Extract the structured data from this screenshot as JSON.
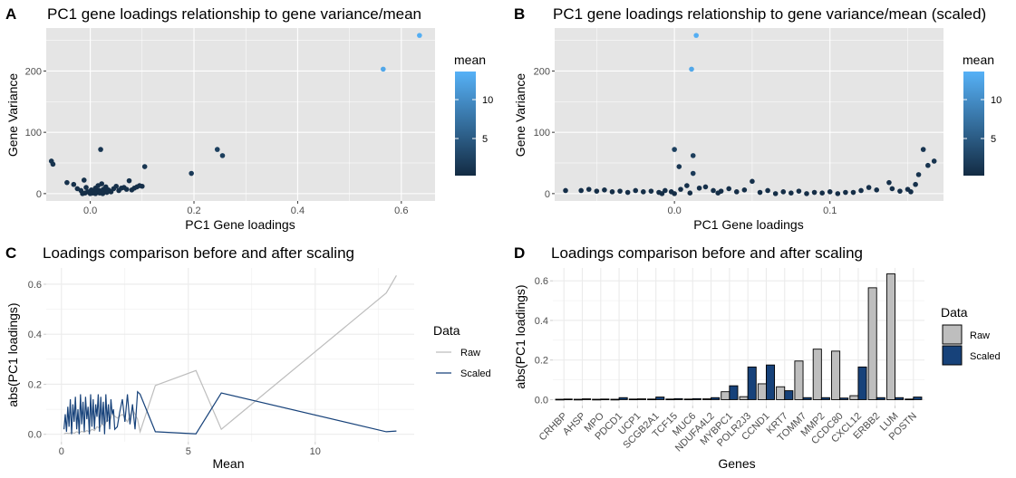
{
  "panels": [
    {
      "letter": "A",
      "title": "PC1 gene loadings relationship to gene variance/mean",
      "xlabel": "PC1 Gene loadings",
      "ylabel": "Gene Variance",
      "xticks": [
        "0.0",
        "0.2",
        "0.4",
        "0.6"
      ],
      "yticks": [
        "0",
        "100",
        "200"
      ],
      "legend_title": "mean",
      "legend_ticks": [
        "5",
        "10"
      ]
    },
    {
      "letter": "B",
      "title": "PC1 gene loadings relationship to gene variance/mean (scaled)",
      "xlabel": "PC1 Gene loadings",
      "ylabel": "Gene Variance",
      "xticks": [
        "0.0",
        "0.1"
      ],
      "yticks": [
        "0",
        "100",
        "200"
      ],
      "legend_title": "mean",
      "legend_ticks": [
        "5",
        "10"
      ]
    },
    {
      "letter": "C",
      "title": "Loadings comparison before and after scaling",
      "xlabel": "Mean",
      "ylabel": "abs(PC1 loadings)",
      "xticks": [
        "0",
        "5",
        "10"
      ],
      "yticks": [
        "0.0",
        "0.2",
        "0.4",
        "0.6"
      ],
      "legend_title": "Data",
      "legend_items": [
        "Raw",
        "Scaled"
      ]
    },
    {
      "letter": "D",
      "title": "Loadings comparison before and after scaling",
      "xlabel": "Genes",
      "ylabel": "abs(PC1 loadings)",
      "yticks": [
        "0.0",
        "0.2",
        "0.4",
        "0.6"
      ],
      "legend_title": "Data",
      "legend_items": [
        "Raw",
        "Scaled"
      ]
    }
  ],
  "colors": {
    "panel_bg": "#e5e5e5",
    "grid": "#ffffff",
    "point_low": "#132b43",
    "point_high": "#56b1f7",
    "raw_line": "#bdbdbd",
    "scaled_line": "#17427a",
    "raw_bar": "#bebebe",
    "scaled_bar": "#17427a"
  },
  "chart_data": [
    {
      "type": "scatter",
      "title": "PC1 gene loadings relationship to gene variance/mean",
      "xlabel": "PC1 Gene loadings",
      "ylabel": "Gene Variance",
      "color_by": "mean",
      "xlim": [
        -0.085,
        0.665
      ],
      "ylim": [
        -12,
        270
      ],
      "points": [
        {
          "x": 0.635,
          "y": 258,
          "mean": 13.2
        },
        {
          "x": 0.565,
          "y": 203,
          "mean": 12.5
        },
        {
          "x": 0.245,
          "y": 72,
          "mean": 2.5
        },
        {
          "x": 0.255,
          "y": 62,
          "mean": 2.3
        },
        {
          "x": 0.195,
          "y": 33,
          "mean": 2.0
        },
        {
          "x": 0.105,
          "y": 44,
          "mean": 1.6
        },
        {
          "x": 0.02,
          "y": 72,
          "mean": 1.5
        },
        {
          "x": -0.075,
          "y": 53,
          "mean": 1.4
        },
        {
          "x": -0.072,
          "y": 48,
          "mean": 1.4
        },
        {
          "x": -0.045,
          "y": 18,
          "mean": 1.2
        },
        {
          "x": -0.032,
          "y": 15,
          "mean": 1.1
        },
        {
          "x": -0.025,
          "y": 8,
          "mean": 1.0
        },
        {
          "x": -0.018,
          "y": 5,
          "mean": 1.0
        },
        {
          "x": -0.012,
          "y": 22,
          "mean": 1.1
        },
        {
          "x": -0.008,
          "y": 10,
          "mean": 1.0
        },
        {
          "x": -0.005,
          "y": 3,
          "mean": 0.9
        },
        {
          "x": 0.0,
          "y": 2,
          "mean": 0.8
        },
        {
          "x": 0.002,
          "y": 6,
          "mean": 0.9
        },
        {
          "x": 0.005,
          "y": 1,
          "mean": 0.8
        },
        {
          "x": 0.008,
          "y": 4,
          "mean": 0.8
        },
        {
          "x": 0.01,
          "y": 9,
          "mean": 0.9
        },
        {
          "x": 0.012,
          "y": 2,
          "mean": 0.8
        },
        {
          "x": 0.015,
          "y": 13,
          "mean": 1.0
        },
        {
          "x": 0.017,
          "y": 5,
          "mean": 0.8
        },
        {
          "x": 0.02,
          "y": 3,
          "mean": 0.8
        },
        {
          "x": 0.022,
          "y": 16,
          "mean": 1.0
        },
        {
          "x": 0.025,
          "y": 7,
          "mean": 0.9
        },
        {
          "x": 0.028,
          "y": 4,
          "mean": 0.8
        },
        {
          "x": 0.03,
          "y": 11,
          "mean": 0.9
        },
        {
          "x": 0.035,
          "y": 6,
          "mean": 0.9
        },
        {
          "x": 0.04,
          "y": 3,
          "mean": 0.8
        },
        {
          "x": 0.045,
          "y": 8,
          "mean": 0.9
        },
        {
          "x": 0.05,
          "y": 12,
          "mean": 1.0
        },
        {
          "x": 0.055,
          "y": 5,
          "mean": 0.9
        },
        {
          "x": 0.06,
          "y": 9,
          "mean": 0.9
        },
        {
          "x": 0.065,
          "y": 10,
          "mean": 1.0
        },
        {
          "x": 0.07,
          "y": 7,
          "mean": 0.9
        },
        {
          "x": 0.075,
          "y": 21,
          "mean": 1.1
        },
        {
          "x": 0.08,
          "y": 6,
          "mean": 0.9
        },
        {
          "x": 0.085,
          "y": 9,
          "mean": 0.9
        },
        {
          "x": 0.09,
          "y": 11,
          "mean": 1.0
        },
        {
          "x": 0.095,
          "y": 13,
          "mean": 1.0
        },
        {
          "x": 0.1,
          "y": 12,
          "mean": 1.0
        },
        {
          "x": -0.015,
          "y": 0,
          "mean": 0.8
        },
        {
          "x": -0.01,
          "y": 1,
          "mean": 0.8
        },
        {
          "x": 0.0,
          "y": 0,
          "mean": 0.8
        },
        {
          "x": 0.01,
          "y": 0,
          "mean": 0.8
        },
        {
          "x": 0.018,
          "y": 1,
          "mean": 0.8
        },
        {
          "x": 0.024,
          "y": 0,
          "mean": 0.8
        },
        {
          "x": 0.032,
          "y": 2,
          "mean": 0.8
        }
      ]
    },
    {
      "type": "scatter",
      "title": "PC1 gene loadings relationship to gene variance/mean (scaled)",
      "xlabel": "PC1 Gene loadings",
      "ylabel": "Gene Variance",
      "color_by": "mean",
      "xlim": [
        -0.077,
        0.173
      ],
      "ylim": [
        -12,
        270
      ],
      "points": [
        {
          "x": 0.014,
          "y": 258,
          "mean": 13.2
        },
        {
          "x": 0.011,
          "y": 203,
          "mean": 12.5
        },
        {
          "x": 0.0,
          "y": 72,
          "mean": 2.5
        },
        {
          "x": 0.012,
          "y": 62,
          "mean": 2.3
        },
        {
          "x": 0.003,
          "y": 44,
          "mean": 1.6
        },
        {
          "x": 0.012,
          "y": 33,
          "mean": 2.0
        },
        {
          "x": 0.16,
          "y": 72,
          "mean": 1.5
        },
        {
          "x": 0.167,
          "y": 53,
          "mean": 1.4
        },
        {
          "x": 0.163,
          "y": 46,
          "mean": 1.4
        },
        {
          "x": 0.157,
          "y": 31,
          "mean": 1.3
        },
        {
          "x": 0.05,
          "y": 20,
          "mean": 1.1
        },
        {
          "x": 0.138,
          "y": 18,
          "mean": 1.1
        },
        {
          "x": 0.155,
          "y": 15,
          "mean": 1.1
        },
        {
          "x": 0.125,
          "y": 10,
          "mean": 1.0
        },
        {
          "x": 0.14,
          "y": 8,
          "mean": 1.0
        },
        {
          "x": 0.15,
          "y": 7,
          "mean": 0.9
        },
        {
          "x": 0.145,
          "y": 4,
          "mean": 0.9
        },
        {
          "x": 0.152,
          "y": 3,
          "mean": 0.9
        },
        {
          "x": 0.12,
          "y": 5,
          "mean": 0.9
        },
        {
          "x": 0.13,
          "y": 6,
          "mean": 0.9
        },
        {
          "x": 0.11,
          "y": 2,
          "mean": 0.8
        },
        {
          "x": 0.1,
          "y": 3,
          "mean": 0.8
        },
        {
          "x": 0.09,
          "y": 2,
          "mean": 0.8
        },
        {
          "x": 0.08,
          "y": 4,
          "mean": 0.8
        },
        {
          "x": 0.07,
          "y": 3,
          "mean": 0.8
        },
        {
          "x": 0.06,
          "y": 5,
          "mean": 0.9
        },
        {
          "x": 0.055,
          "y": 2,
          "mean": 0.8
        },
        {
          "x": 0.045,
          "y": 6,
          "mean": 0.9
        },
        {
          "x": 0.04,
          "y": 3,
          "mean": 0.8
        },
        {
          "x": 0.035,
          "y": 8,
          "mean": 0.9
        },
        {
          "x": 0.03,
          "y": 4,
          "mean": 0.8
        },
        {
          "x": 0.025,
          "y": 5,
          "mean": 0.9
        },
        {
          "x": 0.02,
          "y": 11,
          "mean": 1.0
        },
        {
          "x": 0.016,
          "y": 9,
          "mean": 0.9
        },
        {
          "x": 0.008,
          "y": 13,
          "mean": 1.0
        },
        {
          "x": 0.004,
          "y": 7,
          "mean": 0.9
        },
        {
          "x": -0.002,
          "y": 3,
          "mean": 0.8
        },
        {
          "x": -0.006,
          "y": 5,
          "mean": 0.9
        },
        {
          "x": -0.01,
          "y": 2,
          "mean": 0.8
        },
        {
          "x": -0.015,
          "y": 4,
          "mean": 0.8
        },
        {
          "x": -0.02,
          "y": 3,
          "mean": 0.8
        },
        {
          "x": -0.025,
          "y": 5,
          "mean": 0.9
        },
        {
          "x": -0.03,
          "y": 2,
          "mean": 0.8
        },
        {
          "x": -0.035,
          "y": 4,
          "mean": 0.8
        },
        {
          "x": -0.04,
          "y": 3,
          "mean": 0.8
        },
        {
          "x": -0.045,
          "y": 6,
          "mean": 0.9
        },
        {
          "x": -0.05,
          "y": 4,
          "mean": 0.8
        },
        {
          "x": -0.055,
          "y": 7,
          "mean": 0.9
        },
        {
          "x": -0.06,
          "y": 5,
          "mean": 0.9
        },
        {
          "x": -0.07,
          "y": 5,
          "mean": 0.9
        },
        {
          "x": 0.065,
          "y": 0,
          "mean": 0.8
        },
        {
          "x": 0.075,
          "y": 1,
          "mean": 0.8
        },
        {
          "x": 0.085,
          "y": 0,
          "mean": 0.8
        },
        {
          "x": 0.095,
          "y": 1,
          "mean": 0.8
        },
        {
          "x": 0.105,
          "y": 0,
          "mean": 0.8
        },
        {
          "x": 0.115,
          "y": 2,
          "mean": 0.8
        },
        {
          "x": 0.0,
          "y": 0,
          "mean": 0.8
        },
        {
          "x": 0.01,
          "y": 1,
          "mean": 0.8
        },
        {
          "x": -0.008,
          "y": 0,
          "mean": 0.8
        },
        {
          "x": 0.028,
          "y": 1,
          "mean": 0.8
        }
      ]
    },
    {
      "type": "line",
      "title": "Loadings comparison before and after scaling",
      "xlabel": "Mean",
      "ylabel": "abs(PC1 loadings)",
      "xlim": [
        -0.6,
        13.9
      ],
      "ylim": [
        -0.03,
        0.665
      ],
      "series": [
        {
          "name": "Raw",
          "x": [
            0.1,
            0.2,
            0.3,
            0.4,
            0.5,
            0.6,
            0.7,
            0.8,
            0.9,
            1.0,
            1.1,
            1.2,
            1.3,
            1.4,
            1.5,
            1.6,
            1.7,
            1.8,
            1.9,
            2.0,
            2.2,
            2.4,
            2.6,
            2.8,
            3.0,
            3.1,
            3.7,
            5.3,
            6.3,
            12.8,
            13.2
          ],
          "y": [
            0.002,
            0.005,
            0.003,
            0.008,
            0.004,
            0.01,
            0.006,
            0.012,
            0.008,
            0.015,
            0.01,
            0.02,
            0.015,
            0.03,
            0.025,
            0.04,
            0.035,
            0.06,
            0.05,
            0.08,
            0.065,
            0.08,
            0.05,
            0.1,
            0.06,
            0.01,
            0.195,
            0.255,
            0.02,
            0.565,
            0.635
          ]
        },
        {
          "name": "Scaled",
          "x": [
            0.1,
            0.15,
            0.2,
            0.25,
            0.3,
            0.35,
            0.4,
            0.45,
            0.5,
            0.55,
            0.6,
            0.65,
            0.7,
            0.75,
            0.8,
            0.85,
            0.9,
            0.95,
            1.0,
            1.05,
            1.1,
            1.15,
            1.2,
            1.25,
            1.3,
            1.35,
            1.4,
            1.45,
            1.5,
            1.55,
            1.6,
            1.65,
            1.7,
            1.75,
            1.8,
            1.85,
            1.9,
            1.95,
            2.0,
            2.05,
            2.1,
            2.2,
            2.3,
            2.4,
            2.5,
            2.6,
            2.7,
            2.8,
            2.9,
            3.0,
            3.1,
            3.7,
            5.3,
            6.3,
            12.8,
            13.2
          ],
          "y": [
            0.02,
            0.08,
            0.01,
            0.11,
            0.03,
            0.14,
            0.0,
            0.12,
            0.05,
            0.15,
            0.02,
            0.1,
            0.0,
            0.16,
            0.04,
            0.13,
            0.01,
            0.15,
            0.06,
            0.11,
            0.0,
            0.16,
            0.03,
            0.14,
            0.02,
            0.12,
            0.07,
            0.16,
            0.01,
            0.15,
            0.04,
            0.13,
            0.0,
            0.16,
            0.05,
            0.12,
            0.02,
            0.14,
            0.08,
            0.1,
            0.02,
            0.03,
            0.09,
            0.14,
            0.05,
            0.16,
            0.04,
            0.12,
            0.02,
            0.17,
            0.16,
            0.01,
            0.002,
            0.165,
            0.01,
            0.013
          ]
        }
      ]
    },
    {
      "type": "bar",
      "title": "Loadings comparison before and after scaling",
      "xlabel": "Genes",
      "ylabel": "abs(PC1 loadings)",
      "ylim": [
        -0.03,
        0.665
      ],
      "categories": [
        "CRHBP",
        "AHSP",
        "MPO",
        "PDCD1",
        "UCP1",
        "SCGB2A1",
        "TCF15",
        "MUC6",
        "NDUFA4L2",
        "MYBPC1",
        "POLR2J3",
        "CCND1",
        "KRT7",
        "TOMM7",
        "MMP2",
        "CCDC80",
        "CXCL12",
        "ERBB2",
        "LUM",
        "POSTN"
      ],
      "series": [
        {
          "name": "Raw",
          "values": [
            0.002,
            0.002,
            0.002,
            0.002,
            0.003,
            0.003,
            0.003,
            0.003,
            0.004,
            0.04,
            0.015,
            0.08,
            0.065,
            0.195,
            0.255,
            0.245,
            0.02,
            0.565,
            0.635,
            0.003
          ]
        },
        {
          "name": "Scaled",
          "values": [
            0.003,
            0.004,
            0.003,
            0.01,
            0.004,
            0.013,
            0.005,
            0.005,
            0.01,
            0.07,
            0.165,
            0.175,
            0.045,
            0.01,
            0.01,
            0.008,
            0.165,
            0.01,
            0.01,
            0.013
          ]
        }
      ]
    }
  ]
}
